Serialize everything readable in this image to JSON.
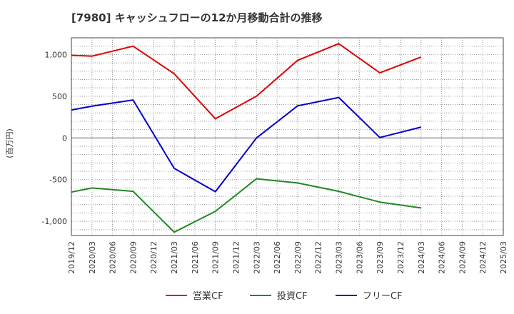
{
  "chart_data": {
    "type": "line",
    "title": "[7980]  キャッシュフローの12か月移動合計の推移",
    "ylabel": "(百万円)",
    "xlabel": "",
    "ylim": [
      -1170,
      1200
    ],
    "yticks": [
      1000,
      500,
      0,
      -500,
      -1000
    ],
    "ytick_labels": [
      "1,000",
      "500",
      "0",
      "-500",
      "-1,000"
    ],
    "categories": [
      "2019/12",
      "2020/03",
      "2020/06",
      "2020/09",
      "2020/12",
      "2021/03",
      "2021/06",
      "2021/09",
      "2021/12",
      "2022/03",
      "2022/06",
      "2022/09",
      "2022/12",
      "2023/03",
      "2023/06",
      "2023/09",
      "2023/12",
      "2024/03",
      "2024/06",
      "2024/09",
      "2024/12",
      "2025/03"
    ],
    "series": [
      {
        "name": "営業CF",
        "color": "#dd0000",
        "values": [
          990,
          980,
          null,
          1100,
          null,
          770,
          null,
          230,
          null,
          500,
          null,
          930,
          null,
          1130,
          null,
          780,
          null,
          970,
          null,
          null,
          null,
          null
        ]
      },
      {
        "name": "投資CF",
        "color": "#228822",
        "values": [
          -650,
          -600,
          null,
          -640,
          null,
          -1130,
          null,
          -880,
          null,
          -490,
          null,
          -540,
          null,
          -640,
          null,
          -770,
          null,
          -840,
          null,
          null,
          null,
          null
        ]
      },
      {
        "name": "フリーCF",
        "color": "#0000cc",
        "values": [
          335,
          380,
          null,
          455,
          null,
          -365,
          null,
          -645,
          null,
          0,
          null,
          385,
          null,
          485,
          null,
          5,
          null,
          130,
          null,
          null,
          null,
          null
        ]
      }
    ],
    "legend_position": "bottom"
  }
}
